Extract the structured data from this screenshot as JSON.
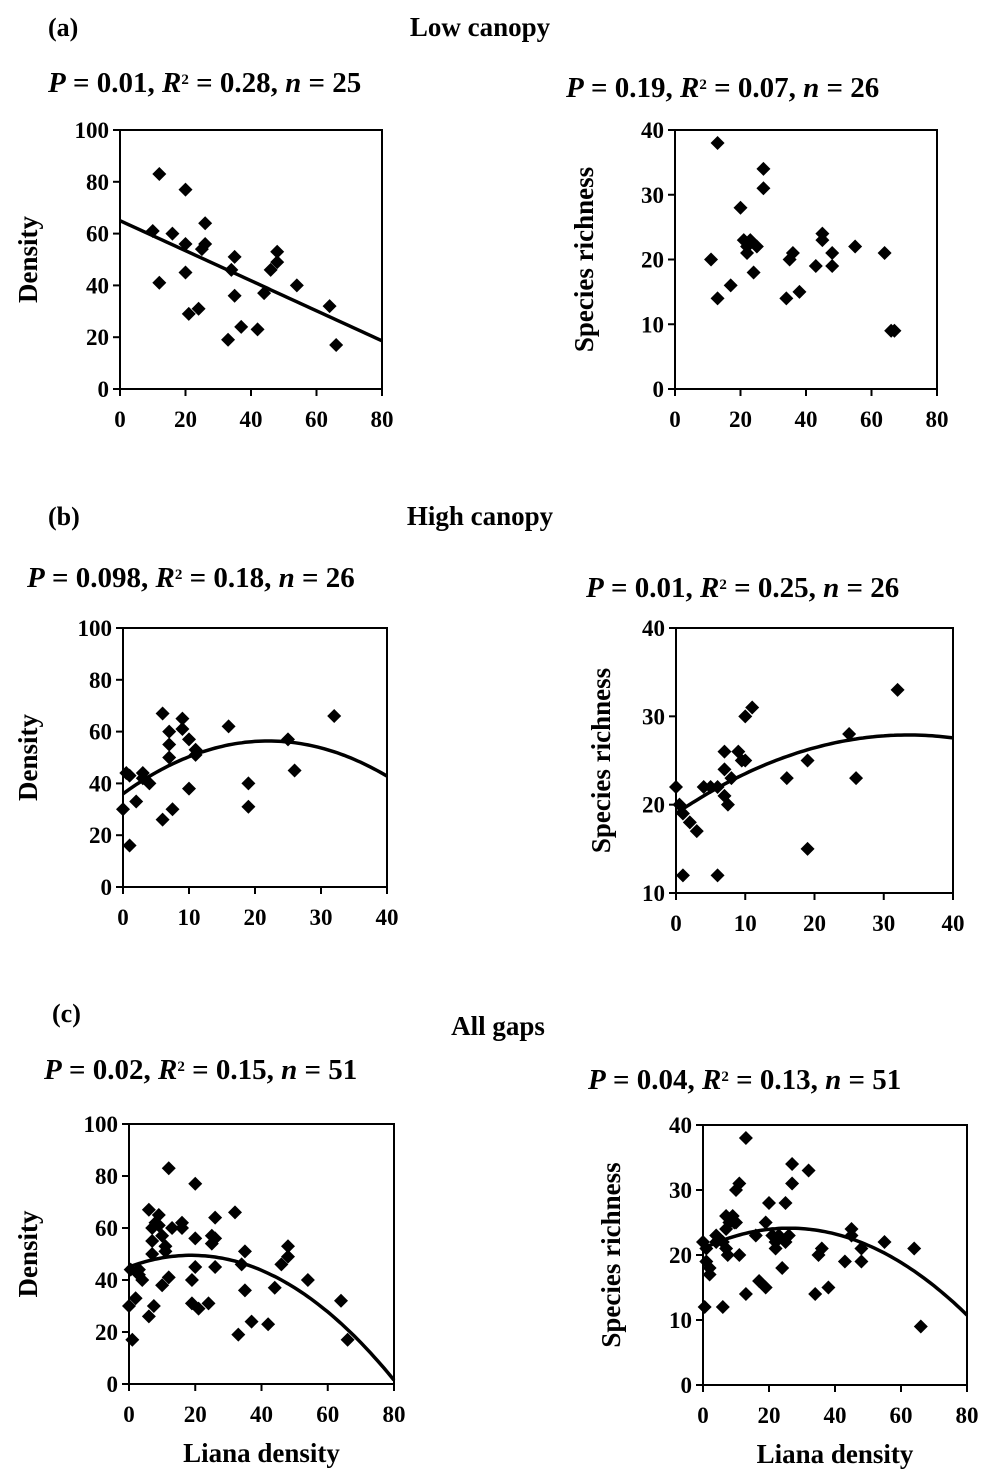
{
  "figure": {
    "rows": [
      {
        "label": "(a)",
        "title": "Low canopy"
      },
      {
        "label": "(b)",
        "title": "High canopy"
      },
      {
        "label": "(c)",
        "title": "All gaps"
      }
    ]
  },
  "chart_data": [
    {
      "type": "scatter",
      "panel": "(a)",
      "row_title": "Low canopy",
      "stats": {
        "P": "0.01",
        "R2": "0.28",
        "n": "25"
      },
      "xlabel": "",
      "ylabel": "Density",
      "xlim": [
        0,
        80
      ],
      "ylim": [
        0,
        100
      ],
      "xticks": [
        0,
        20,
        40,
        60,
        80
      ],
      "yticks": [
        0,
        20,
        40,
        60,
        80,
        100
      ],
      "points": [
        [
          10,
          61
        ],
        [
          12,
          83
        ],
        [
          12,
          41
        ],
        [
          16,
          60
        ],
        [
          20,
          77
        ],
        [
          20,
          56
        ],
        [
          20,
          45
        ],
        [
          21,
          29
        ],
        [
          24,
          31
        ],
        [
          25,
          54
        ],
        [
          26,
          64
        ],
        [
          26,
          56
        ],
        [
          33,
          19
        ],
        [
          34,
          46
        ],
        [
          35,
          51
        ],
        [
          35,
          36
        ],
        [
          37,
          24
        ],
        [
          42,
          23
        ],
        [
          44,
          37
        ],
        [
          46,
          46
        ],
        [
          48,
          53
        ],
        [
          48,
          49
        ],
        [
          54,
          40
        ],
        [
          64,
          32
        ],
        [
          66,
          17
        ]
      ],
      "fit": {
        "kind": "linear",
        "coef": [
          65,
          -0.58
        ]
      }
    },
    {
      "type": "scatter",
      "panel": "(a)",
      "row_title": "Low canopy",
      "stats": {
        "P": "0.19",
        "R2": "0.07",
        "n": "26"
      },
      "xlabel": "",
      "ylabel": "Species richness",
      "xlim": [
        0,
        80
      ],
      "ylim": [
        0,
        40
      ],
      "xticks": [
        0,
        20,
        40,
        60,
        80
      ],
      "yticks": [
        0,
        10,
        20,
        30,
        40
      ],
      "points": [
        [
          11,
          20
        ],
        [
          13,
          38
        ],
        [
          13,
          14
        ],
        [
          17,
          16
        ],
        [
          20,
          28
        ],
        [
          21,
          23
        ],
        [
          22,
          22
        ],
        [
          22,
          21
        ],
        [
          23,
          23
        ],
        [
          24,
          18
        ],
        [
          25,
          22
        ],
        [
          27,
          34
        ],
        [
          27,
          31
        ],
        [
          34,
          14
        ],
        [
          35,
          20
        ],
        [
          36,
          21
        ],
        [
          38,
          15
        ],
        [
          43,
          19
        ],
        [
          45,
          23
        ],
        [
          45,
          24
        ],
        [
          48,
          21
        ],
        [
          48,
          19
        ],
        [
          55,
          22
        ],
        [
          64,
          21
        ],
        [
          66,
          9
        ],
        [
          67,
          9
        ]
      ],
      "fit": null
    },
    {
      "type": "scatter",
      "panel": "(b)",
      "row_title": "High canopy",
      "stats": {
        "P": "0.098",
        "R2": "0.18",
        "n": "26"
      },
      "xlabel": "",
      "ylabel": "Density",
      "xlim": [
        0,
        40
      ],
      "ylim": [
        0,
        100
      ],
      "xticks": [
        0,
        10,
        20,
        30,
        40
      ],
      "yticks": [
        0,
        20,
        40,
        60,
        80,
        100
      ],
      "points": [
        [
          0,
          30
        ],
        [
          0.5,
          44
        ],
        [
          1,
          16
        ],
        [
          2,
          33
        ],
        [
          3,
          44
        ],
        [
          4,
          40
        ],
        [
          6,
          67
        ],
        [
          6,
          26
        ],
        [
          7,
          60
        ],
        [
          7,
          55
        ],
        [
          7,
          50
        ],
        [
          7.5,
          30
        ],
        [
          9,
          65
        ],
        [
          9,
          61
        ],
        [
          10,
          57
        ],
        [
          10,
          38
        ],
        [
          11,
          53
        ],
        [
          11,
          51
        ],
        [
          16,
          62
        ],
        [
          19,
          40
        ],
        [
          19,
          31
        ],
        [
          25,
          57
        ],
        [
          26,
          45
        ],
        [
          32,
          66
        ],
        [
          1,
          43
        ],
        [
          3,
          42
        ]
      ],
      "fit": {
        "kind": "quadratic",
        "coef": [
          36,
          1.85,
          -0.042
        ]
      }
    },
    {
      "type": "scatter",
      "panel": "(b)",
      "row_title": "High canopy",
      "stats": {
        "P": "0.01",
        "R2": "0.25",
        "n": "26"
      },
      "xlabel": "",
      "ylabel": "Species richness",
      "xlim": [
        0,
        40
      ],
      "ylim": [
        10,
        40
      ],
      "xticks": [
        0,
        10,
        20,
        30,
        40
      ],
      "yticks": [
        10,
        20,
        30,
        40
      ],
      "points": [
        [
          0,
          22
        ],
        [
          0.5,
          20
        ],
        [
          1,
          12
        ],
        [
          2,
          18
        ],
        [
          3,
          17
        ],
        [
          4,
          22
        ],
        [
          6,
          12
        ],
        [
          6,
          22
        ],
        [
          7,
          26
        ],
        [
          7,
          24
        ],
        [
          7,
          21
        ],
        [
          7.5,
          20
        ],
        [
          9,
          26
        ],
        [
          9.5,
          25
        ],
        [
          10,
          30
        ],
        [
          10,
          25
        ],
        [
          11,
          31
        ],
        [
          16,
          23
        ],
        [
          19,
          25
        ],
        [
          19,
          15
        ],
        [
          25,
          28
        ],
        [
          26,
          23
        ],
        [
          32,
          33
        ],
        [
          1,
          19
        ],
        [
          5,
          22
        ],
        [
          8,
          23
        ]
      ],
      "fit": {
        "kind": "quadratic",
        "coef": [
          19,
          0.53,
          -0.0079
        ]
      }
    },
    {
      "type": "scatter",
      "panel": "(c)",
      "row_title": "All gaps",
      "stats": {
        "P": "0.02",
        "R2": "0.15",
        "n": "51"
      },
      "xlabel": "Liana density",
      "ylabel": "Density",
      "xlim": [
        0,
        80
      ],
      "ylim": [
        0,
        100
      ],
      "xticks": [
        0,
        20,
        40,
        60,
        80
      ],
      "yticks": [
        0,
        20,
        40,
        60,
        80,
        100
      ],
      "points": [
        [
          0,
          30
        ],
        [
          0.5,
          44
        ],
        [
          1,
          17
        ],
        [
          2,
          33
        ],
        [
          3,
          44
        ],
        [
          4,
          40
        ],
        [
          6,
          67
        ],
        [
          6,
          26
        ],
        [
          7,
          60
        ],
        [
          7,
          55
        ],
        [
          7,
          50
        ],
        [
          7.5,
          30
        ],
        [
          9,
          65
        ],
        [
          9,
          61
        ],
        [
          10,
          57
        ],
        [
          10,
          38
        ],
        [
          11,
          53
        ],
        [
          11,
          51
        ],
        [
          12,
          41
        ],
        [
          12,
          83
        ],
        [
          16,
          62
        ],
        [
          16,
          60
        ],
        [
          19,
          40
        ],
        [
          19,
          31
        ],
        [
          20,
          77
        ],
        [
          20,
          56
        ],
        [
          20,
          45
        ],
        [
          21,
          29
        ],
        [
          24,
          31
        ],
        [
          25,
          54
        ],
        [
          25,
          57
        ],
        [
          26,
          64
        ],
        [
          26,
          45
        ],
        [
          26,
          56
        ],
        [
          32,
          66
        ],
        [
          33,
          19
        ],
        [
          34,
          46
        ],
        [
          35,
          51
        ],
        [
          35,
          36
        ],
        [
          37,
          24
        ],
        [
          42,
          23
        ],
        [
          44,
          37
        ],
        [
          46,
          46
        ],
        [
          48,
          53
        ],
        [
          48,
          49
        ],
        [
          54,
          40
        ],
        [
          64,
          32
        ],
        [
          66,
          17
        ],
        [
          8,
          62
        ],
        [
          13,
          60
        ],
        [
          3,
          42
        ]
      ],
      "fit": {
        "kind": "quadratic",
        "coef": [
          45,
          0.48,
          -0.0128
        ]
      }
    },
    {
      "type": "scatter",
      "panel": "(c)",
      "row_title": "All gaps",
      "stats": {
        "P": "0.04",
        "R2": "0.13",
        "n": "51"
      },
      "xlabel": "Liana density",
      "ylabel": "Species richness",
      "xlim": [
        0,
        80
      ],
      "ylim": [
        0,
        40
      ],
      "xticks": [
        0,
        20,
        40,
        60,
        80
      ],
      "yticks": [
        0,
        10,
        20,
        30,
        40
      ],
      "points": [
        [
          0,
          22
        ],
        [
          0.5,
          12
        ],
        [
          1,
          19
        ],
        [
          2,
          18
        ],
        [
          2,
          17
        ],
        [
          4,
          22
        ],
        [
          6,
          12
        ],
        [
          6,
          22
        ],
        [
          7,
          26
        ],
        [
          7,
          24
        ],
        [
          7,
          21
        ],
        [
          7.5,
          20
        ],
        [
          9,
          26
        ],
        [
          9.5,
          25
        ],
        [
          10,
          30
        ],
        [
          10,
          25
        ],
        [
          11,
          31
        ],
        [
          11,
          20
        ],
        [
          13,
          38
        ],
        [
          13,
          14
        ],
        [
          16,
          23
        ],
        [
          17,
          16
        ],
        [
          19,
          25
        ],
        [
          19,
          15
        ],
        [
          20,
          28
        ],
        [
          21,
          23
        ],
        [
          22,
          22
        ],
        [
          22,
          21
        ],
        [
          23,
          23
        ],
        [
          24,
          18
        ],
        [
          25,
          28
        ],
        [
          25,
          22
        ],
        [
          26,
          23
        ],
        [
          27,
          34
        ],
        [
          27,
          31
        ],
        [
          32,
          33
        ],
        [
          34,
          14
        ],
        [
          35,
          20
        ],
        [
          36,
          21
        ],
        [
          38,
          15
        ],
        [
          43,
          19
        ],
        [
          45,
          23
        ],
        [
          45,
          24
        ],
        [
          48,
          21
        ],
        [
          48,
          19
        ],
        [
          55,
          22
        ],
        [
          64,
          21
        ],
        [
          66,
          9
        ],
        [
          8,
          25
        ],
        [
          4,
          23
        ],
        [
          1,
          21
        ]
      ],
      "fit": {
        "kind": "quadratic",
        "coef": [
          21,
          0.24,
          -0.0046
        ]
      }
    }
  ]
}
